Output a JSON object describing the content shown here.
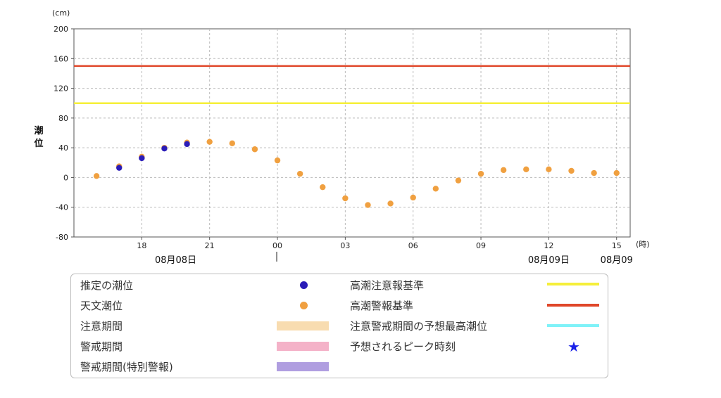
{
  "chart_data": {
    "type": "scatter",
    "y_unit": "(cm)",
    "x_unit": "(時)",
    "ylabel": "潮位",
    "ylim": [
      -80,
      200
    ],
    "yticks": [
      "200",
      "160",
      "120",
      "80",
      "40",
      "0",
      "-40",
      "-80"
    ],
    "y_tick_values": [
      200,
      160,
      120,
      80,
      40,
      0,
      -40,
      -80
    ],
    "xlim": [
      15,
      39.6
    ],
    "xticks": [
      {
        "hour": 18,
        "label": "18"
      },
      {
        "hour": 21,
        "label": "21"
      },
      {
        "hour": 24,
        "label": "00"
      },
      {
        "hour": 27,
        "label": "03"
      },
      {
        "hour": 30,
        "label": "06"
      },
      {
        "hour": 33,
        "label": "09"
      },
      {
        "hour": 36,
        "label": "12"
      },
      {
        "hour": 39,
        "label": "15"
      }
    ],
    "date_labels": [
      {
        "hour": 19.5,
        "label": "08月08日"
      },
      {
        "hour": 36,
        "label": "08月09日"
      },
      {
        "hour": 39,
        "label": "08月09"
      }
    ],
    "grid": true,
    "thresholds": [
      {
        "name": "高潮注意報基準",
        "value": 100,
        "color": "#f5ef3a"
      },
      {
        "name": "高潮警報基準",
        "value": 150,
        "color": "#e0472a"
      }
    ],
    "series": [
      {
        "name": "天文潮位",
        "color": "#f0a040",
        "x": [
          16,
          17,
          18,
          19,
          20,
          21,
          22,
          23,
          24,
          25,
          26,
          27,
          28,
          29,
          30,
          31,
          32,
          33,
          34,
          35,
          36,
          37,
          38,
          39
        ],
        "y": [
          2,
          15,
          28,
          40,
          47,
          48,
          46,
          38,
          23,
          5,
          -13,
          -28,
          -37,
          -35,
          -27,
          -15,
          -4,
          5,
          10,
          11,
          11,
          9,
          6,
          6
        ]
      },
      {
        "name": "推定の潮位",
        "color": "#2a1cb8",
        "x": [
          17,
          18,
          19,
          20
        ],
        "y": [
          13,
          26,
          39,
          45
        ]
      }
    ]
  },
  "legend": {
    "estimated": "推定の潮位",
    "astronomical": "天文潮位",
    "caution_period": "注意期間",
    "warning_period": "警戒期間",
    "special_warning_period": "警戒期間(特別警報)",
    "advisory_standard": "高潮注意報基準",
    "warning_standard": "高潮警報基準",
    "forecast_max": "注意警戒期間の予想最高潮位",
    "peak_time": "予想されるピーク時刻",
    "colors": {
      "estimated": "#2a1cb8",
      "astronomical": "#f0a040",
      "caution_period": "#f8dcb0",
      "warning_period": "#f4b2c8",
      "special_warning_period": "#b09ee0",
      "advisory_standard": "#f5ef3a",
      "warning_standard": "#e0472a",
      "forecast_max": "#7ff2f8",
      "peak_time": "#1a22e8"
    }
  }
}
